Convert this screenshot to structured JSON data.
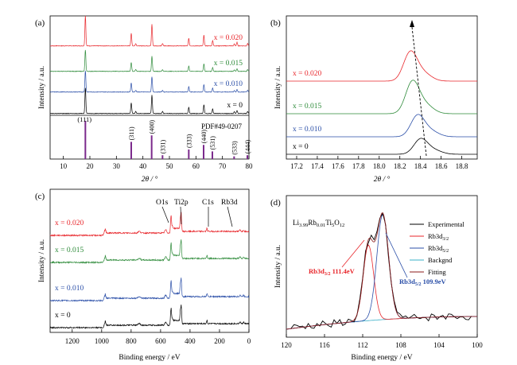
{
  "chart_data": [
    {
      "panel": "(a)",
      "type": "line",
      "xlabel": "2θ / °",
      "ylabel": "Intensity / a.u.",
      "xlim": [
        5,
        80
      ],
      "xticks": [
        10,
        20,
        30,
        40,
        50,
        60,
        70,
        80
      ],
      "peaks_2theta": [
        18.3,
        35.6,
        37.3,
        43.4,
        47.4,
        57.3,
        63.0,
        66.3,
        74.5,
        75.5,
        79.5
      ],
      "peak_rel_height": [
        1.0,
        0.42,
        0.08,
        0.72,
        0.08,
        0.25,
        0.35,
        0.18,
        0.07,
        0.12,
        0.08
      ],
      "series": [
        {
          "name": "x = 0.020",
          "color": "#e8262b"
        },
        {
          "name": "x = 0.015",
          "color": "#2e8b3a"
        },
        {
          "name": "x = 0.010",
          "color": "#2b4fa8"
        },
        {
          "name": "x = 0",
          "color": "#000000"
        }
      ],
      "reference": {
        "label": "PDF#49-0207",
        "color": "#7b2a8c",
        "bars": [
          {
            "x": 18.3,
            "h": 1.0,
            "hkl": "(111)"
          },
          {
            "x": 35.6,
            "h": 0.45,
            "hkl": "(311)"
          },
          {
            "x": 43.3,
            "h": 0.62,
            "hkl": "(400)"
          },
          {
            "x": 47.4,
            "h": 0.1,
            "hkl": "(331)"
          },
          {
            "x": 57.3,
            "h": 0.25,
            "hkl": "(333)"
          },
          {
            "x": 62.9,
            "h": 0.37,
            "hkl": "(440)"
          },
          {
            "x": 66.2,
            "h": 0.2,
            "hkl": "(531)"
          },
          {
            "x": 74.4,
            "h": 0.07,
            "hkl": "(533)"
          },
          {
            "x": 79.4,
            "h": 0.1,
            "hkl": "(444)"
          }
        ]
      }
    },
    {
      "panel": "(b)",
      "type": "line",
      "xlabel": "2θ / °",
      "ylabel": "Intensity / a.u.",
      "xlim": [
        17.1,
        18.95
      ],
      "xticks": [
        17.2,
        17.4,
        17.6,
        17.8,
        18.0,
        18.2,
        18.4,
        18.6,
        18.8
      ],
      "series": [
        {
          "name": "x = 0.020",
          "color": "#e8262b",
          "peak": 18.3
        },
        {
          "name": "x = 0.015",
          "color": "#2e8b3a",
          "peak": 18.32
        },
        {
          "name": "x = 0.010",
          "color": "#2b4fa8",
          "peak": 18.37
        },
        {
          "name": "x = 0",
          "color": "#000000",
          "peak": 18.4
        }
      ]
    },
    {
      "panel": "(c)",
      "type": "line",
      "xlabel": "Binding energy / eV",
      "ylabel": "Intensity / a.u.",
      "xlim": [
        1350,
        0
      ],
      "xticks": [
        1200,
        1000,
        800,
        600,
        400,
        200,
        0
      ],
      "annotations": [
        {
          "text": "O1s",
          "x": 530
        },
        {
          "text": "Ti2p",
          "x": 459
        },
        {
          "text": "C1s",
          "x": 285
        },
        {
          "text": "Rb3d",
          "x": 110
        }
      ],
      "series": [
        {
          "name": "x = 0.020",
          "color": "#e8262b"
        },
        {
          "name": "x = 0.015",
          "color": "#2e8b3a"
        },
        {
          "name": "x = 0.010",
          "color": "#2b4fa8"
        },
        {
          "name": "x = 0",
          "color": "#000000"
        }
      ]
    },
    {
      "panel": "(d)",
      "type": "line",
      "title": "Li3.99Rb0.01Ti5O12",
      "xlabel": "Binding energy / eV",
      "ylabel": "Intensity / a.u.",
      "xlim": [
        120,
        100
      ],
      "xticks": [
        120,
        116,
        112,
        108,
        104,
        100
      ],
      "legend": [
        "Experimental",
        "Rb3d3/2",
        "Rb3d5/2",
        "Backgnd",
        "Fitting"
      ],
      "legend_colors": [
        "#000000",
        "#e8262b",
        "#2b4fa8",
        "#3ab0c8",
        "#8b1a1a"
      ],
      "annotations": [
        {
          "text": "Rb3d3/2 111.4eV",
          "color": "#e8262b",
          "x": 111.4
        },
        {
          "text": "Rb3d5/2 109.9eV",
          "color": "#2b4fa8",
          "x": 109.9
        }
      ]
    }
  ]
}
